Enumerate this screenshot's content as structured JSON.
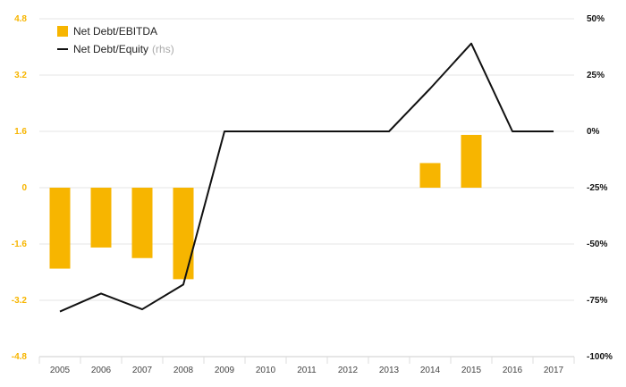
{
  "chart_data": {
    "type": "bar+line",
    "categories": [
      "2005",
      "2006",
      "2007",
      "2008",
      "2009",
      "2010",
      "2011",
      "2012",
      "2013",
      "2014",
      "2015",
      "2016",
      "2017"
    ],
    "series": [
      {
        "name": "Net Debt/EBITDA",
        "type": "bar",
        "axis": "left",
        "color": "#f7b500",
        "values": [
          -2.3,
          -1.7,
          -2.0,
          -2.6,
          null,
          null,
          null,
          null,
          null,
          0.7,
          1.5,
          null,
          null
        ]
      },
      {
        "name": "Net Debt/Equity",
        "name_suffix": "(rhs)",
        "type": "line",
        "axis": "right",
        "color": "#111111",
        "values": [
          -80,
          -72,
          -79,
          -68,
          0,
          0,
          0,
          0,
          0,
          19,
          39,
          0,
          0
        ]
      }
    ],
    "y_left": {
      "ticks": [
        "4.8",
        "3.2",
        "1.6",
        "0",
        "-1.6",
        "-3.2",
        "-4.8"
      ],
      "tick_values": [
        4.8,
        3.2,
        1.6,
        0,
        -1.6,
        -3.2,
        -4.8
      ],
      "range": [
        -4.8,
        4.8
      ],
      "color": "#f7b500"
    },
    "y_right": {
      "ticks": [
        "50%",
        "25%",
        "0%",
        "-25%",
        "-50%",
        "-75%",
        "-100%"
      ],
      "tick_values": [
        50,
        25,
        0,
        -25,
        -50,
        -75,
        -100
      ],
      "range": [
        -100,
        50
      ]
    },
    "grid": true,
    "legend_position": "top-left"
  }
}
